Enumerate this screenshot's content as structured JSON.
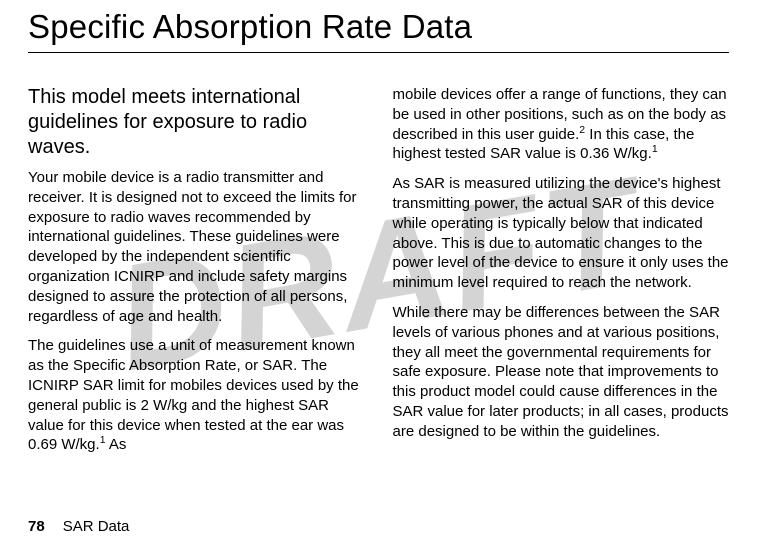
{
  "watermark": "DRAFT",
  "title": "Specific Absorption Rate Data",
  "subheading": "This model meets international guidelines for exposure to radio waves.",
  "left": {
    "p1": "Your mobile device is a radio transmitter and receiver. It is designed not to exceed the limits for exposure to radio waves recommended by international guidelines. These guidelines were developed by the independent scientific organization ICNIRP and include safety margins designed to assure the protection of all persons, regardless of age and health.",
    "p2a": "The guidelines use a unit of measurement known as the Specific Absorption Rate, or SAR. The ICNIRP SAR limit for mobiles devices used by the general public is 2 W/kg and the highest SAR value for this device when tested at the ear was 0.69 W/kg.",
    "sup1": "1",
    "p2b": " As"
  },
  "right": {
    "p1a": "mobile devices offer a range of functions, they can be used in other positions, such as on the body as described in this user guide.",
    "sup2": "2",
    "p1b": " In this case, the highest tested SAR value is 0.36 W/kg.",
    "sup1": "1",
    "p2": "As SAR is measured utilizing the device's highest transmitting power, the actual SAR of this device while operating is typically below that indicated above. This is due to automatic changes to the power level of the device to ensure it only uses the minimum level required to reach the network.",
    "p3": "While there may be differences between the SAR levels of various phones and at various positions, they all meet the governmental requirements for safe exposure. Please note that improvements to this product model could cause differences in the SAR value for later products; in all cases, products are designed to be within the guidelines."
  },
  "footer": {
    "page": "78",
    "label": "SAR Data"
  },
  "colors": {
    "background": "#ffffff",
    "text": "#000000",
    "watermark": "rgba(160,160,160,0.45)",
    "rule": "#000000"
  }
}
